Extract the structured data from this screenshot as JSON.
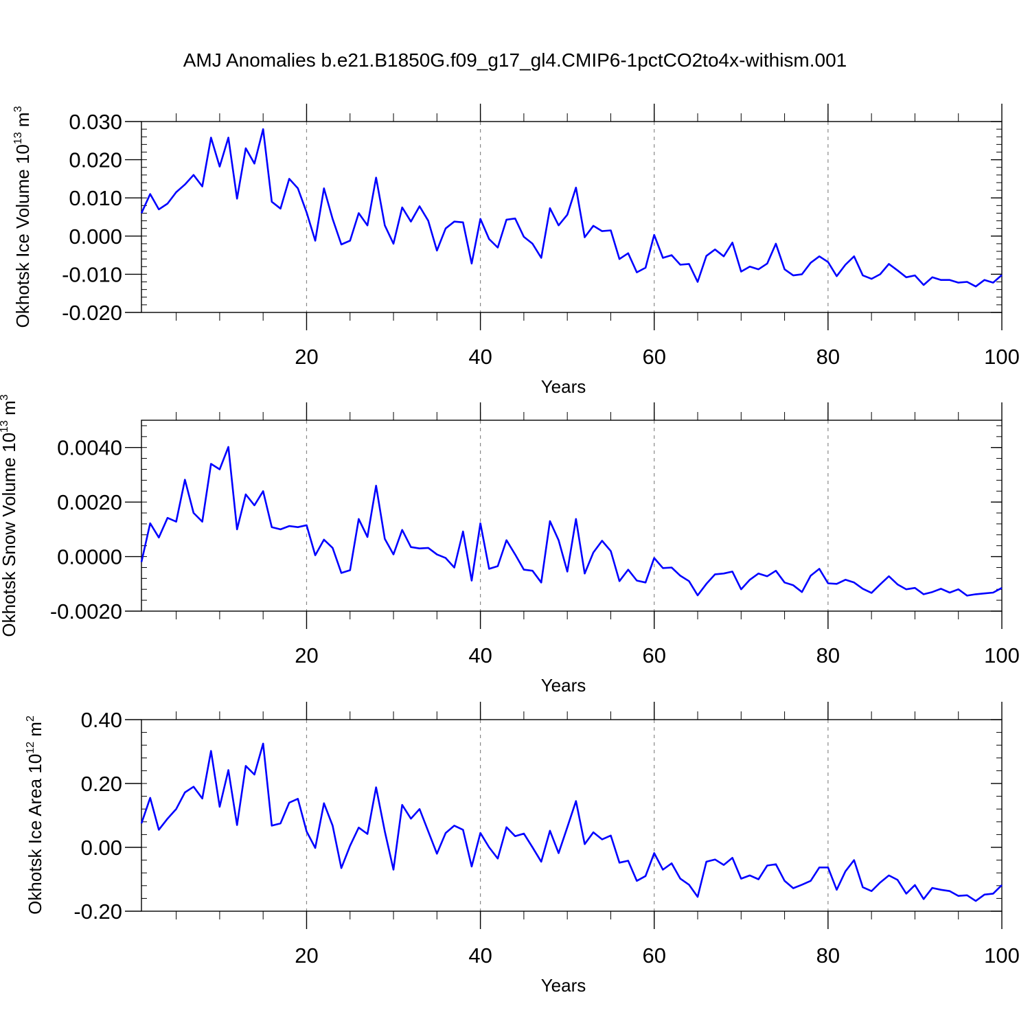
{
  "title": "AMJ Anomalies b.e21.B1850G.f09_g17_gl4.CMIP6-1pctCO2to4x-withism.001",
  "colors": {
    "series": "#0000ff",
    "axis": "#000000",
    "grid": "#888888"
  },
  "chart_data": [
    {
      "type": "line",
      "ylabel": "Okhotsk Ice Volume 10",
      "ylabel_exp": "13",
      "ylabel_unit": "m",
      "ylabel_unit_exp": "3",
      "xlabel": "Years",
      "xlim": [
        1,
        100
      ],
      "ylim": [
        -0.02,
        0.03
      ],
      "yticks": [
        0.03,
        0.02,
        0.01,
        0.0,
        -0.01,
        -0.02
      ],
      "ytick_labels": [
        "0.030",
        "0.020",
        "0.010",
        "0.000",
        "-0.010",
        "-0.020"
      ],
      "xticks": [
        20,
        40,
        60,
        80,
        100
      ],
      "xtick_labels": [
        "20",
        "40",
        "60",
        "80",
        "100"
      ],
      "grid_x": [
        20,
        40,
        60,
        80
      ],
      "values": [
        0.006,
        0.011,
        0.007,
        0.0085,
        0.0115,
        0.0135,
        0.016,
        0.013,
        0.0258,
        0.0182,
        0.0258,
        0.0098,
        0.023,
        0.019,
        0.028,
        0.009,
        0.0072,
        0.015,
        0.0125,
        0.0062,
        -0.0012,
        0.0125,
        0.0045,
        -0.0022,
        -0.0012,
        0.006,
        0.0028,
        0.0153,
        0.0028,
        -0.002,
        0.0075,
        0.0038,
        0.0078,
        0.004,
        -0.0038,
        0.002,
        0.0038,
        0.0036,
        -0.0072,
        0.0045,
        -0.0008,
        -0.003,
        0.0043,
        0.0046,
        -0.0002,
        -0.002,
        -0.0057,
        0.0073,
        0.0028,
        0.0056,
        0.0127,
        -0.0003,
        0.0027,
        0.0013,
        0.0015,
        -0.006,
        -0.0045,
        -0.0095,
        -0.0083,
        0.0003,
        -0.0057,
        -0.005,
        -0.0075,
        -0.0073,
        -0.012,
        -0.0052,
        -0.0035,
        -0.0053,
        -0.0017,
        -0.0093,
        -0.008,
        -0.0087,
        -0.0072,
        -0.002,
        -0.0087,
        -0.0103,
        -0.01,
        -0.007,
        -0.0053,
        -0.0068,
        -0.0105,
        -0.0075,
        -0.0053,
        -0.0103,
        -0.0112,
        -0.01,
        -0.0073,
        -0.009,
        -0.0108,
        -0.0103,
        -0.0128,
        -0.0108,
        -0.0115,
        -0.0115,
        -0.0122,
        -0.012,
        -0.0132,
        -0.0115,
        -0.0122,
        -0.0102
      ]
    },
    {
      "type": "line",
      "ylabel": "Okhotsk Snow Volume 10",
      "ylabel_exp": "13",
      "ylabel_unit": "m",
      "ylabel_unit_exp": "3",
      "xlabel": "Years",
      "xlim": [
        1,
        100
      ],
      "ylim": [
        -0.002,
        0.005
      ],
      "yticks": [
        0.004,
        0.002,
        0.0,
        -0.002
      ],
      "ytick_labels": [
        "0.0040",
        "0.0020",
        "0.0000",
        "-0.0020"
      ],
      "xticks": [
        20,
        40,
        60,
        80,
        100
      ],
      "xtick_labels": [
        "20",
        "40",
        "60",
        "80",
        "100"
      ],
      "grid_x": [
        20,
        40,
        60,
        80
      ],
      "values": [
        -0.0002,
        0.00122,
        0.0007,
        0.00142,
        0.00128,
        0.00282,
        0.0016,
        0.00128,
        0.0034,
        0.0032,
        0.00402,
        0.001,
        0.00228,
        0.00188,
        0.0024,
        0.00108,
        0.001,
        0.00112,
        0.00108,
        0.00115,
        5e-05,
        0.00062,
        0.00032,
        -0.0006,
        -0.0005,
        0.00138,
        0.00072,
        0.0026,
        0.00065,
        8e-05,
        0.00098,
        0.00035,
        0.0003,
        0.00032,
        8e-05,
        -5e-05,
        -0.0004,
        0.00092,
        -0.00088,
        0.00122,
        -0.00045,
        -0.00035,
        0.0006,
        8e-05,
        -0.00048,
        -0.00052,
        -0.00095,
        0.0013,
        0.0006,
        -0.00055,
        0.00138,
        -0.00062,
        0.00015,
        0.00058,
        0.0002,
        -0.0009,
        -0.00048,
        -0.00088,
        -0.00095,
        -5e-05,
        -0.00042,
        -0.0004,
        -0.0007,
        -0.0009,
        -0.00142,
        -0.001,
        -0.00065,
        -0.00062,
        -0.00055,
        -0.0012,
        -0.00085,
        -0.00062,
        -0.00072,
        -0.00052,
        -0.00095,
        -0.00105,
        -0.0013,
        -0.0007,
        -0.00045,
        -0.00098,
        -0.001,
        -0.00085,
        -0.00095,
        -0.00118,
        -0.00133,
        -0.00102,
        -0.00072,
        -0.00102,
        -0.0012,
        -0.00115,
        -0.00138,
        -0.0013,
        -0.00118,
        -0.00132,
        -0.0012,
        -0.00143,
        -0.00138,
        -0.00135,
        -0.00132,
        -0.00115
      ]
    },
    {
      "type": "line",
      "ylabel": "Okhotsk Ice Area 10",
      "ylabel_exp": "12",
      "ylabel_unit": "m",
      "ylabel_unit_exp": "2",
      "xlabel": "Years",
      "xlim": [
        1,
        100
      ],
      "ylim": [
        -0.2,
        0.4
      ],
      "yticks": [
        0.4,
        0.2,
        0.0,
        -0.2
      ],
      "ytick_labels": [
        "0.40",
        "0.20",
        "0.00",
        "-0.20"
      ],
      "xticks": [
        20,
        40,
        60,
        80,
        100
      ],
      "xtick_labels": [
        "20",
        "40",
        "60",
        "80",
        "100"
      ],
      "grid_x": [
        20,
        40,
        60,
        80
      ],
      "values": [
        0.075,
        0.155,
        0.055,
        0.09,
        0.12,
        0.172,
        0.19,
        0.153,
        0.302,
        0.127,
        0.242,
        0.07,
        0.255,
        0.228,
        0.325,
        0.068,
        0.075,
        0.14,
        0.152,
        0.05,
        -0.002,
        0.138,
        0.068,
        -0.065,
        0.005,
        0.062,
        0.042,
        0.188,
        0.05,
        -0.07,
        0.133,
        0.09,
        0.12,
        0.05,
        -0.02,
        0.045,
        0.068,
        0.055,
        -0.06,
        0.045,
        0.0,
        -0.035,
        0.063,
        0.035,
        0.043,
        0.0,
        -0.045,
        0.052,
        -0.018,
        0.063,
        0.145,
        0.01,
        0.047,
        0.025,
        0.037,
        -0.048,
        -0.042,
        -0.105,
        -0.09,
        -0.018,
        -0.07,
        -0.05,
        -0.098,
        -0.117,
        -0.155,
        -0.045,
        -0.038,
        -0.055,
        -0.033,
        -0.098,
        -0.088,
        -0.1,
        -0.057,
        -0.053,
        -0.105,
        -0.128,
        -0.117,
        -0.105,
        -0.063,
        -0.063,
        -0.133,
        -0.075,
        -0.04,
        -0.125,
        -0.137,
        -0.11,
        -0.088,
        -0.102,
        -0.145,
        -0.118,
        -0.162,
        -0.127,
        -0.133,
        -0.137,
        -0.152,
        -0.15,
        -0.168,
        -0.148,
        -0.145,
        -0.118
      ]
    }
  ]
}
